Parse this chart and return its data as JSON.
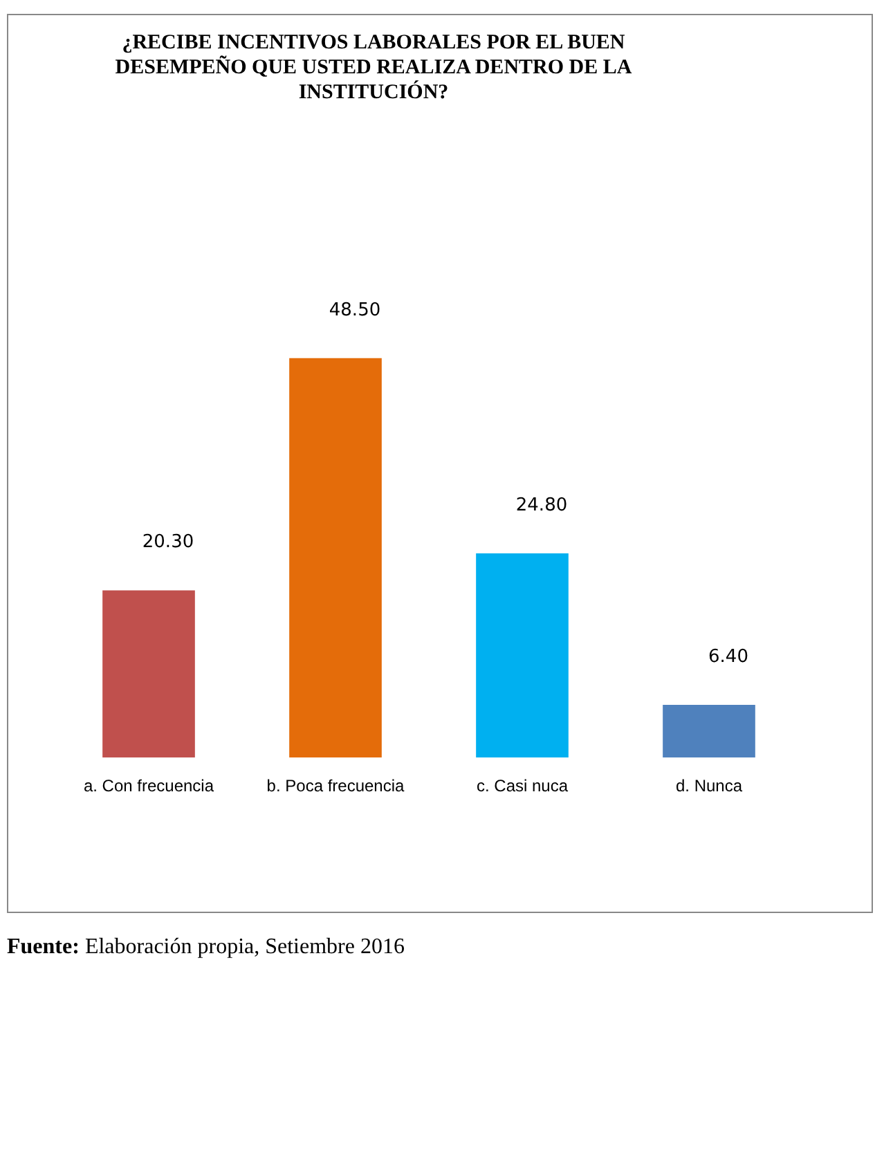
{
  "chart_data": {
    "type": "bar",
    "title": "¿RECIBE INCENTIVOS LABORALES POR EL BUEN DESEMPEÑO QUE USTED REALIZA DENTRO DE LA INSTITUCIÓN?",
    "categories": [
      "a. Con frecuencia",
      "b. Poca frecuencia",
      "c. Casi nuca",
      "d. Nunca"
    ],
    "values": [
      20.3,
      48.5,
      24.8,
      6.4
    ],
    "value_labels": [
      "20.30",
      "48.50",
      "24.80",
      "6.40"
    ],
    "colors": [
      "#c0504d",
      "#e46c0a",
      "#00b0f0",
      "#4f81bd"
    ],
    "grid": false,
    "legend": false,
    "annotations": [
      "Fuente: Elaboración propia, Setiembre 2016"
    ]
  }
}
